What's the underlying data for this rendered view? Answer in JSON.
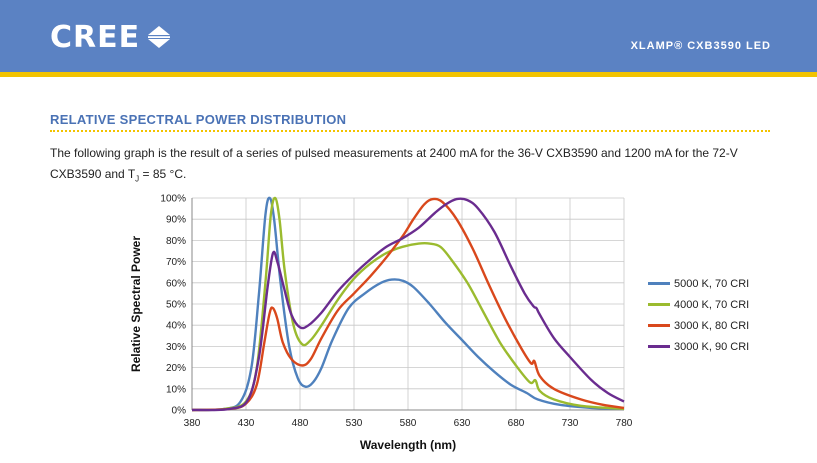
{
  "header": {
    "brand": "CREE",
    "product": "XLAMP® CXB3590 LED",
    "header_color": "#5b82c3",
    "accent_color": "#f2c300"
  },
  "section": {
    "title": "RELATIVE SPECTRAL POWER DISTRIBUTION",
    "text_before": "The following graph is the result of a series of pulsed measurements at 2400 mA for the 36-V CXB3590 and 1200 mA for the 72-V CXB3590 and T",
    "subscript": "J",
    "text_after": " = 85 °C."
  },
  "chart_data": {
    "type": "line",
    "xlabel": "Wavelength (nm)",
    "ylabel": "Relative Spectral Power",
    "xlim": [
      380,
      780
    ],
    "ylim": [
      0,
      100
    ],
    "x_ticks": [
      380,
      430,
      480,
      530,
      580,
      630,
      680,
      730,
      780
    ],
    "y_ticks": [
      0,
      10,
      20,
      30,
      40,
      50,
      60,
      70,
      80,
      90,
      100
    ],
    "y_tick_labels": [
      "0%",
      "10%",
      "20%",
      "30%",
      "40%",
      "50%",
      "60%",
      "70%",
      "80%",
      "90%",
      "100%"
    ],
    "grid": true,
    "legend": "right",
    "series": [
      {
        "name": "5000 K, 70 CRI",
        "color": "#4f81bd",
        "points": [
          [
            380,
            0
          ],
          [
            410,
            0.5
          ],
          [
            425,
            4
          ],
          [
            435,
            20
          ],
          [
            442,
            55
          ],
          [
            448,
            92
          ],
          [
            452,
            100
          ],
          [
            456,
            90
          ],
          [
            462,
            60
          ],
          [
            470,
            30
          ],
          [
            478,
            15
          ],
          [
            485,
            11
          ],
          [
            492,
            13
          ],
          [
            500,
            20
          ],
          [
            510,
            33
          ],
          [
            525,
            48
          ],
          [
            540,
            55
          ],
          [
            555,
            60
          ],
          [
            565,
            61.5
          ],
          [
            575,
            61
          ],
          [
            585,
            58
          ],
          [
            600,
            50
          ],
          [
            615,
            41
          ],
          [
            630,
            33
          ],
          [
            645,
            25
          ],
          [
            660,
            18
          ],
          [
            675,
            12
          ],
          [
            690,
            8
          ],
          [
            700,
            5
          ],
          [
            720,
            2.5
          ],
          [
            750,
            1
          ],
          [
            780,
            0.5
          ]
        ]
      },
      {
        "name": "4000 K, 70 CRI",
        "color": "#9bbb2f",
        "points": [
          [
            380,
            0
          ],
          [
            410,
            0.5
          ],
          [
            430,
            4
          ],
          [
            440,
            20
          ],
          [
            448,
            60
          ],
          [
            453,
            92
          ],
          [
            457,
            100
          ],
          [
            461,
            90
          ],
          [
            466,
            65
          ],
          [
            474,
            40
          ],
          [
            482,
            31
          ],
          [
            490,
            33
          ],
          [
            500,
            40
          ],
          [
            515,
            52
          ],
          [
            530,
            62
          ],
          [
            545,
            69
          ],
          [
            560,
            74
          ],
          [
            575,
            77
          ],
          [
            590,
            78.5
          ],
          [
            600,
            78.5
          ],
          [
            610,
            77
          ],
          [
            620,
            71
          ],
          [
            635,
            60
          ],
          [
            650,
            46
          ],
          [
            665,
            32
          ],
          [
            680,
            21
          ],
          [
            693,
            13
          ],
          [
            698,
            14
          ],
          [
            702,
            9
          ],
          [
            715,
            5
          ],
          [
            740,
            2
          ],
          [
            780,
            0.5
          ]
        ]
      },
      {
        "name": "3000 K, 80 CRI",
        "color": "#d9481c",
        "points": [
          [
            380,
            0
          ],
          [
            415,
            0.5
          ],
          [
            430,
            3
          ],
          [
            440,
            12
          ],
          [
            447,
            32
          ],
          [
            452,
            46
          ],
          [
            455,
            48
          ],
          [
            459,
            43
          ],
          [
            464,
            32
          ],
          [
            472,
            24
          ],
          [
            482,
            21
          ],
          [
            490,
            24
          ],
          [
            500,
            34
          ],
          [
            515,
            47
          ],
          [
            530,
            55
          ],
          [
            545,
            63
          ],
          [
            560,
            72
          ],
          [
            575,
            82
          ],
          [
            585,
            90
          ],
          [
            595,
            97
          ],
          [
            603,
            99.5
          ],
          [
            612,
            98
          ],
          [
            625,
            90
          ],
          [
            640,
            76
          ],
          [
            655,
            59
          ],
          [
            670,
            43
          ],
          [
            685,
            29
          ],
          [
            694,
            22
          ],
          [
            697,
            23
          ],
          [
            702,
            16
          ],
          [
            715,
            10
          ],
          [
            740,
            5
          ],
          [
            760,
            2.5
          ],
          [
            780,
            1
          ]
        ]
      },
      {
        "name": "3000 K, 90 CRI",
        "color": "#6a2c8f",
        "points": [
          [
            380,
            0
          ],
          [
            415,
            0.5
          ],
          [
            432,
            5
          ],
          [
            442,
            25
          ],
          [
            450,
            58
          ],
          [
            455,
            74
          ],
          [
            459,
            70
          ],
          [
            465,
            58
          ],
          [
            472,
            45
          ],
          [
            480,
            39
          ],
          [
            488,
            40
          ],
          [
            500,
            46
          ],
          [
            515,
            56
          ],
          [
            530,
            64
          ],
          [
            545,
            71
          ],
          [
            560,
            77
          ],
          [
            575,
            81
          ],
          [
            590,
            86
          ],
          [
            605,
            93
          ],
          [
            615,
            97
          ],
          [
            625,
            99.5
          ],
          [
            635,
            99
          ],
          [
            645,
            95
          ],
          [
            660,
            84
          ],
          [
            675,
            68
          ],
          [
            688,
            55
          ],
          [
            696,
            49
          ],
          [
            699,
            48
          ],
          [
            702,
            45
          ],
          [
            715,
            34
          ],
          [
            730,
            25
          ],
          [
            750,
            14
          ],
          [
            765,
            8
          ],
          [
            780,
            4
          ]
        ]
      }
    ]
  }
}
